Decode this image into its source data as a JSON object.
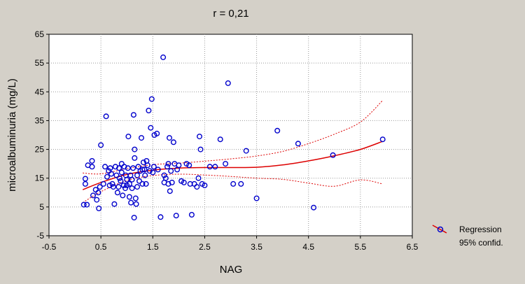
{
  "chart_data": {
    "type": "scatter",
    "title": "r = 0,21",
    "xlabel": "NAG",
    "ylabel": "microalbuminuria (mg/L)",
    "xlim": [
      -0.5,
      6.5
    ],
    "ylim": [
      -5,
      65
    ],
    "xticks": [
      "-0.5",
      "0.5",
      "1.5",
      "2.5",
      "3.5",
      "4.5",
      "5.5",
      "6.5"
    ],
    "yticks": [
      "65",
      "55",
      "45",
      "35",
      "25",
      "15",
      "5",
      "-5"
    ],
    "grid": true,
    "legend_position": "bottom-right outside",
    "legend": {
      "line1": "Regression",
      "line2": "95% confid."
    },
    "colors": {
      "points": "#0000cc",
      "regression": "#dd0000",
      "background": "#d4d0c8",
      "plot_area": "#ffffff"
    },
    "points": [
      [
        0.17,
        5.8
      ],
      [
        0.23,
        5.8
      ],
      [
        0.2,
        13
      ],
      [
        0.2,
        14.8
      ],
      [
        0.25,
        19.5
      ],
      [
        0.33,
        21
      ],
      [
        0.33,
        19
      ],
      [
        0.35,
        9
      ],
      [
        0.4,
        11
      ],
      [
        0.42,
        7.5
      ],
      [
        0.45,
        10
      ],
      [
        0.46,
        4.5
      ],
      [
        0.48,
        12
      ],
      [
        0.5,
        26.5
      ],
      [
        0.55,
        13
      ],
      [
        0.58,
        19
      ],
      [
        0.6,
        36.5
      ],
      [
        0.62,
        15.5
      ],
      [
        0.65,
        17.5
      ],
      [
        0.67,
        12.5
      ],
      [
        0.68,
        18.5
      ],
      [
        0.7,
        16.5
      ],
      [
        0.72,
        13
      ],
      [
        0.74,
        12
      ],
      [
        0.76,
        6
      ],
      [
        0.78,
        19
      ],
      [
        0.8,
        16
      ],
      [
        0.82,
        10
      ],
      [
        0.84,
        12
      ],
      [
        0.85,
        18.5
      ],
      [
        0.86,
        15
      ],
      [
        0.88,
        14
      ],
      [
        0.9,
        17
      ],
      [
        0.9,
        20
      ],
      [
        0.92,
        9
      ],
      [
        0.94,
        12.5
      ],
      [
        0.95,
        19
      ],
      [
        0.97,
        11.5
      ],
      [
        0.98,
        16
      ],
      [
        1.0,
        12.5
      ],
      [
        1.0,
        14.5
      ],
      [
        1.02,
        18.5
      ],
      [
        1.03,
        29.5
      ],
      [
        1.05,
        8.5
      ],
      [
        1.05,
        13
      ],
      [
        1.07,
        16
      ],
      [
        1.08,
        6.5
      ],
      [
        1.1,
        11.5
      ],
      [
        1.1,
        14.5
      ],
      [
        1.12,
        18.5
      ],
      [
        1.13,
        37
      ],
      [
        1.14,
        1.3
      ],
      [
        1.15,
        25
      ],
      [
        1.15,
        22
      ],
      [
        1.17,
        8
      ],
      [
        1.18,
        6
      ],
      [
        1.2,
        16
      ],
      [
        1.2,
        12
      ],
      [
        1.22,
        19
      ],
      [
        1.24,
        14
      ],
      [
        1.26,
        17.5
      ],
      [
        1.28,
        29
      ],
      [
        1.3,
        18
      ],
      [
        1.3,
        13
      ],
      [
        1.32,
        20.5
      ],
      [
        1.34,
        18
      ],
      [
        1.35,
        16
      ],
      [
        1.37,
        13
      ],
      [
        1.38,
        21
      ],
      [
        1.4,
        19.5
      ],
      [
        1.42,
        38.5
      ],
      [
        1.44,
        17.5
      ],
      [
        1.46,
        32.5
      ],
      [
        1.48,
        42.5
      ],
      [
        1.5,
        17
      ],
      [
        1.52,
        19
      ],
      [
        1.53,
        30
      ],
      [
        1.58,
        30.5
      ],
      [
        1.6,
        18
      ],
      [
        1.65,
        1.5
      ],
      [
        1.7,
        57
      ],
      [
        1.72,
        16
      ],
      [
        1.72,
        13.5
      ],
      [
        1.75,
        15
      ],
      [
        1.78,
        19
      ],
      [
        1.8,
        13
      ],
      [
        1.8,
        20
      ],
      [
        1.82,
        29
      ],
      [
        1.83,
        10.5
      ],
      [
        1.85,
        17.5
      ],
      [
        1.87,
        13.5
      ],
      [
        1.9,
        27.5
      ],
      [
        1.92,
        20
      ],
      [
        1.95,
        2
      ],
      [
        1.97,
        18
      ],
      [
        2.0,
        19.5
      ],
      [
        2.05,
        14
      ],
      [
        2.1,
        13.5
      ],
      [
        2.15,
        20
      ],
      [
        2.2,
        19.5
      ],
      [
        2.22,
        13
      ],
      [
        2.25,
        2.3
      ],
      [
        2.3,
        13
      ],
      [
        2.35,
        12
      ],
      [
        2.38,
        15
      ],
      [
        2.4,
        29.5
      ],
      [
        2.42,
        25
      ],
      [
        2.45,
        13
      ],
      [
        2.5,
        12.5
      ],
      [
        2.6,
        19
      ],
      [
        2.7,
        19
      ],
      [
        2.8,
        28.5
      ],
      [
        2.9,
        20
      ],
      [
        2.95,
        48
      ],
      [
        3.05,
        13
      ],
      [
        3.2,
        13
      ],
      [
        3.3,
        24.5
      ],
      [
        3.5,
        8
      ],
      [
        3.9,
        31.5
      ],
      [
        4.3,
        27
      ],
      [
        4.6,
        4.8
      ],
      [
        4.97,
        23
      ],
      [
        5.93,
        28.5
      ]
    ],
    "regression": [
      [
        0.15,
        11.0
      ],
      [
        0.5,
        13.5
      ],
      [
        1.0,
        16.3
      ],
      [
        1.5,
        17.8
      ],
      [
        2.0,
        18.5
      ],
      [
        2.5,
        18.7
      ],
      [
        3.0,
        18.7
      ],
      [
        3.5,
        18.8
      ],
      [
        4.0,
        19.6
      ],
      [
        4.5,
        21.0
      ],
      [
        5.0,
        22.8
      ],
      [
        5.5,
        25.0
      ],
      [
        5.93,
        27.8
      ]
    ],
    "ci_upper": [
      [
        0.15,
        16.8
      ],
      [
        0.5,
        16.5
      ],
      [
        1.0,
        18.3
      ],
      [
        1.5,
        19.7
      ],
      [
        2.0,
        20.2
      ],
      [
        2.5,
        20.9
      ],
      [
        3.0,
        21.7
      ],
      [
        3.5,
        22.7
      ],
      [
        4.0,
        24.3
      ],
      [
        4.5,
        27.0
      ],
      [
        5.0,
        30.3
      ],
      [
        5.5,
        34.5
      ],
      [
        5.93,
        42.0
      ]
    ],
    "ci_lower": [
      [
        0.15,
        6.5
      ],
      [
        0.5,
        10.3
      ],
      [
        1.0,
        14.2
      ],
      [
        1.5,
        15.9
      ],
      [
        2.0,
        16.4
      ],
      [
        2.5,
        16.1
      ],
      [
        3.0,
        15.6
      ],
      [
        3.5,
        15.0
      ],
      [
        4.0,
        14.6
      ],
      [
        4.5,
        13.3
      ],
      [
        5.0,
        12.2
      ],
      [
        5.5,
        14.4
      ],
      [
        5.93,
        13.0
      ]
    ]
  }
}
